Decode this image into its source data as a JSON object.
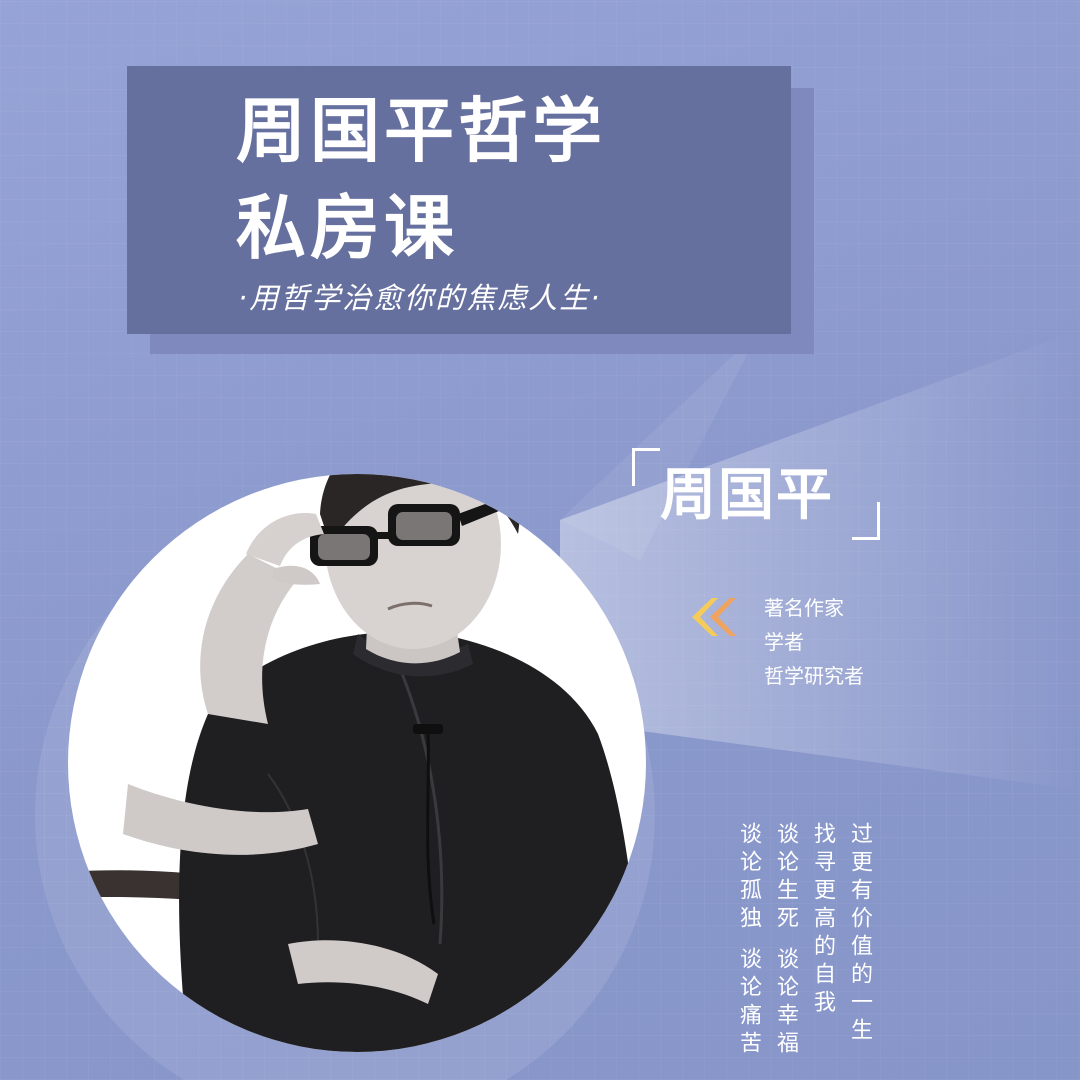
{
  "poster": {
    "title_line1": "周国平哲学",
    "title_line2": "私房课",
    "subtitle": "·用哲学治愈你的焦虑人生·"
  },
  "speaker": {
    "name": "周国平",
    "roles": [
      "著名作家",
      "学者",
      "哲学研究者"
    ]
  },
  "topics": [
    "过更有价值的一生",
    "找寻更高的自我",
    "谈论生死 谈论幸福",
    "谈论孤独 谈论痛苦"
  ],
  "colors": {
    "background": "#8d9bcf",
    "title_box": "#66709e",
    "title_shadow": "#7f89bd",
    "arrow_orange": "#f0a35c",
    "arrow_yellow": "#f5cc58"
  },
  "icons": {
    "role_marker": "double-chevron-left-icon"
  }
}
